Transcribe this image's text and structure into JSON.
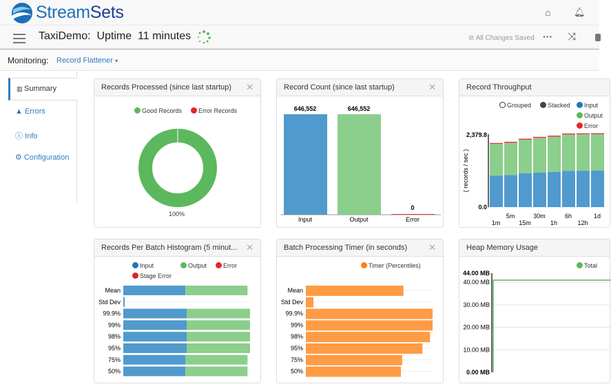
{
  "app": {
    "brand": "StreamSets",
    "brand_a": "Stream",
    "brand_b": "Sets",
    "title": "TaxiDemo:  Uptime  11 minutes",
    "saved_status": "All Changes Saved"
  },
  "icons": {
    "home": "home-icon",
    "bell": "bell-icon",
    "menu": "hamburger-icon",
    "more": "ellipsis-icon",
    "shuffle": "shuffle-icon",
    "spinner": "loading-spinner-icon"
  },
  "monitoring": {
    "label": "Monitoring:",
    "selected": "Record Flattener"
  },
  "sidebar": {
    "items": [
      {
        "label": "Summary",
        "icon": "bar-chart-icon"
      },
      {
        "label": "Errors",
        "icon": "warning-icon"
      },
      {
        "label": "Info",
        "icon": "info-icon"
      },
      {
        "label": "Configuration",
        "icon": "gear-icon"
      }
    ]
  },
  "colors": {
    "input": "#3d8fc8",
    "output": "#7fc97f",
    "error": "#e8252a",
    "stage_error": "#d62728",
    "good": "#5cb85c",
    "timer": "#ff9b45",
    "accent": "#2f7bbf"
  },
  "panels": {
    "records_processed": {
      "title": "Records Processed (since last startup)",
      "chart_data": {
        "type": "pie",
        "legend": [
          "Good Records",
          "Error Records"
        ],
        "values": [
          100,
          0
        ],
        "label": "100%"
      }
    },
    "record_count": {
      "title": "Record Count (since last startup)",
      "chart_data": {
        "type": "bar",
        "categories": [
          "Input",
          "Output",
          "Error"
        ],
        "values": [
          646552,
          646552,
          0
        ],
        "labels": [
          "646,552",
          "646,552",
          "0"
        ]
      }
    },
    "throughput": {
      "title": "Record Throughput",
      "modes": [
        "Grouped",
        "Stacked"
      ],
      "ylabel": "( records / sec )",
      "chart_data": {
        "type": "bar",
        "stacked": true,
        "categories": [
          "1m",
          "5m",
          "15m",
          "30m",
          "1h",
          "6h",
          "12h",
          "1d"
        ],
        "yticks": [
          "0.0",
          "2,379.8"
        ],
        "ylim": [
          0,
          2379.8
        ],
        "series": [
          {
            "name": "Input",
            "values": [
              1030,
              1050,
              1100,
              1130,
              1150,
              1185,
              1188,
              1189
            ]
          },
          {
            "name": "Output",
            "values": [
              1030,
              1050,
              1100,
              1130,
              1150,
              1185,
              1188,
              1189
            ]
          },
          {
            "name": "Error",
            "values": [
              0,
              0,
              0,
              0,
              0,
              0,
              0,
              0
            ]
          }
        ],
        "legend_labels": [
          "Input",
          "Output",
          "Error"
        ]
      }
    },
    "histogram": {
      "title": "Records Per Batch Histogram (5 minut...",
      "chart_data": {
        "type": "bar",
        "orientation": "horizontal",
        "stacked": true,
        "legend": [
          "Input",
          "Output",
          "Error",
          "Stage Error"
        ],
        "categories": [
          "Mean",
          "Std Dev",
          "99.9%",
          "99%",
          "98%",
          "95%",
          "75%",
          "50%"
        ],
        "series": [
          {
            "name": "Input",
            "values": [
              0.49,
              0.01,
              0.5,
              0.5,
              0.5,
              0.5,
              0.49,
              0.49
            ]
          },
          {
            "name": "Output",
            "values": [
              0.49,
              0,
              0.5,
              0.5,
              0.5,
              0.5,
              0.49,
              0.49
            ]
          }
        ]
      }
    },
    "timer": {
      "title": "Batch Processing Timer (in seconds)",
      "chart_data": {
        "type": "bar",
        "orientation": "horizontal",
        "legend": [
          "Timer (Percentiles)"
        ],
        "categories": [
          "Mean",
          "Std Dev",
          "99.9%",
          "99%",
          "98%",
          "95%",
          "75%",
          "50%"
        ],
        "values": [
          0.77,
          0.06,
          1.0,
          1.0,
          0.98,
          0.92,
          0.76,
          0.75
        ]
      }
    },
    "heap": {
      "title": "Heap Memory Usage",
      "chart_data": {
        "type": "line",
        "legend": [
          "Total"
        ],
        "yticks": [
          "0.00 MB",
          "10.00 MB",
          "20.00 MB",
          "30.00 MB",
          "40.00 MB",
          "44.00 MB"
        ],
        "ylim": [
          0,
          44
        ],
        "series": [
          {
            "name": "Total",
            "values": [
              0,
              40.9,
              40.9
            ]
          }
        ]
      }
    }
  }
}
